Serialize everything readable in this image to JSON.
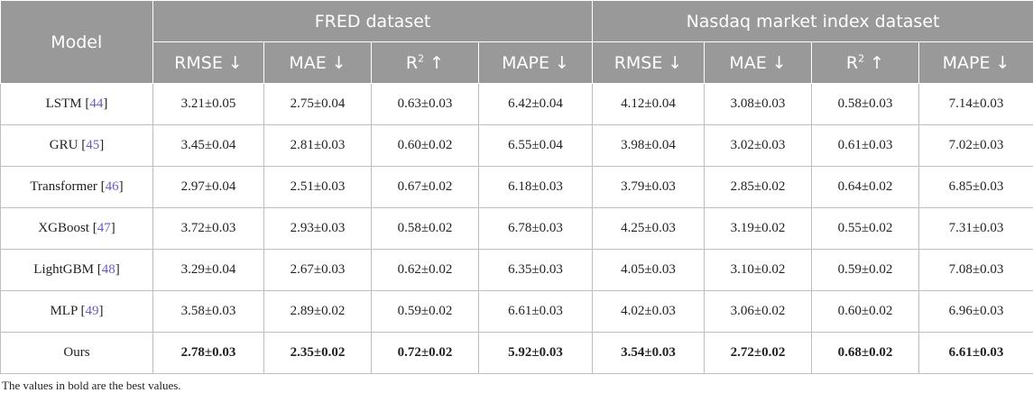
{
  "header": {
    "model": "Model",
    "group1": "FRED dataset",
    "group2": "Nasdaq market index dataset",
    "metrics": [
      {
        "base": "RMSE",
        "sup": "",
        "arrow": "↓"
      },
      {
        "base": "MAE",
        "sup": "",
        "arrow": "↓"
      },
      {
        "base": "R",
        "sup": "2",
        "arrow": "↑"
      },
      {
        "base": "MAPE",
        "sup": "",
        "arrow": "↓"
      },
      {
        "base": "RMSE",
        "sup": "",
        "arrow": "↓"
      },
      {
        "base": "MAE",
        "sup": "",
        "arrow": "↓"
      },
      {
        "base": "R",
        "sup": "2",
        "arrow": "↑"
      },
      {
        "base": "MAPE",
        "sup": "",
        "arrow": "↓"
      }
    ]
  },
  "rows": [
    {
      "model": "LSTM",
      "ref": "44",
      "values": [
        "3.21±0.05",
        "2.75±0.04",
        "0.63±0.03",
        "6.42±0.04",
        "4.12±0.04",
        "3.08±0.03",
        "0.58±0.03",
        "7.14±0.03"
      ]
    },
    {
      "model": "GRU",
      "ref": "45",
      "values": [
        "3.45±0.04",
        "2.81±0.03",
        "0.60±0.02",
        "6.55±0.04",
        "3.98±0.04",
        "3.02±0.03",
        "0.61±0.03",
        "7.02±0.03"
      ]
    },
    {
      "model": "Transformer",
      "ref": "46",
      "values": [
        "2.97±0.04",
        "2.51±0.03",
        "0.67±0.02",
        "6.18±0.03",
        "3.79±0.03",
        "2.85±0.02",
        "0.64±0.02",
        "6.85±0.03"
      ]
    },
    {
      "model": "XGBoost",
      "ref": "47",
      "values": [
        "3.72±0.03",
        "2.93±0.03",
        "0.58±0.02",
        "6.78±0.03",
        "4.25±0.03",
        "3.19±0.02",
        "0.55±0.02",
        "7.31±0.03"
      ]
    },
    {
      "model": "LightGBM",
      "ref": "48",
      "values": [
        "3.29±0.04",
        "2.67±0.03",
        "0.62±0.02",
        "6.35±0.03",
        "4.05±0.03",
        "3.10±0.02",
        "0.59±0.02",
        "7.08±0.03"
      ]
    },
    {
      "model": "MLP",
      "ref": "49",
      "values": [
        "3.58±0.03",
        "2.89±0.02",
        "0.59±0.02",
        "6.61±0.03",
        "4.02±0.03",
        "3.06±0.02",
        "0.60±0.02",
        "6.96±0.03"
      ]
    },
    {
      "model": "Ours",
      "ref": "",
      "best": true,
      "values": [
        "2.78±0.03",
        "2.35±0.02",
        "0.72±0.02",
        "5.92±0.03",
        "3.54±0.03",
        "2.72±0.02",
        "0.68±0.02",
        "6.61±0.03"
      ]
    }
  ],
  "footnote": "The values in bold are the best values.",
  "colors": {
    "header_bg": "#999999",
    "header_text": "#ffffff",
    "reference_link": "#6a5acd",
    "grid_line": "#bdbdbd"
  }
}
